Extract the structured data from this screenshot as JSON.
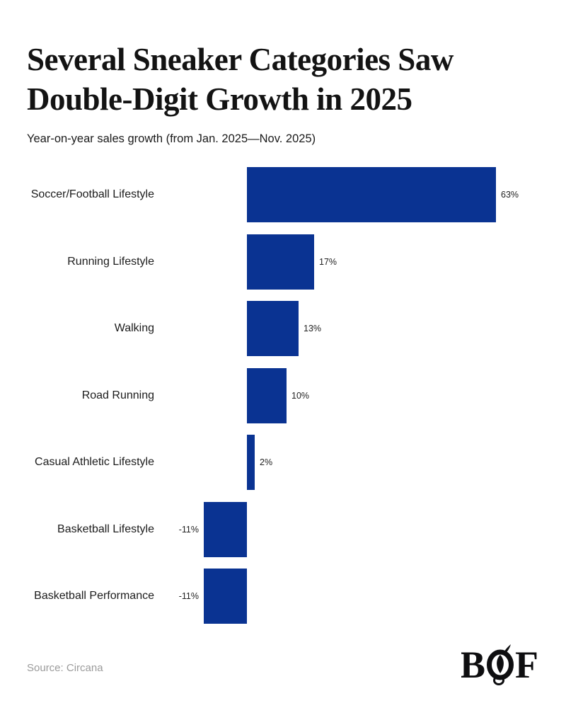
{
  "header": {
    "title_line1": "Several Sneaker Categories Saw",
    "title_line2": "Double-Digit Growth in 2025",
    "subtitle": "Year-on-year sales growth (from Jan. 2025—Nov. 2025)"
  },
  "chart_data": {
    "type": "bar",
    "orientation": "horizontal",
    "title": "Several Sneaker Categories Saw Double-Digit Growth in 2025",
    "subtitle": "Year-on-year sales growth (from Jan. 2025—Nov. 2025)",
    "categories": [
      "Soccer/Football Lifestyle",
      "Running Lifestyle",
      "Walking",
      "Road Running",
      "Casual Athletic Lifestyle",
      "Basketball Lifestyle",
      "Basketball Performance"
    ],
    "values": [
      63,
      17,
      13,
      10,
      2,
      -11,
      -11
    ],
    "value_labels": [
      "63%",
      "17%",
      "13%",
      "10%",
      "2%",
      "-11%",
      "-11%"
    ],
    "unit": "%",
    "xlabel": "",
    "ylabel": "",
    "xlim": [
      -13,
      68
    ],
    "grid": false,
    "legend": false,
    "bar_color": "#0a3392"
  },
  "footer": {
    "source": "Source: Circana",
    "logo_letter_b": "B",
    "logo_letter_f": "F",
    "logo_name": "BoF"
  },
  "colors": {
    "bar": "#0a3392",
    "title": "#131313",
    "category_label": "#1c1c1c",
    "value_label": "#222222",
    "source": "#9b9b9b",
    "background": "#ffffff",
    "logo": "#0e0e10"
  }
}
